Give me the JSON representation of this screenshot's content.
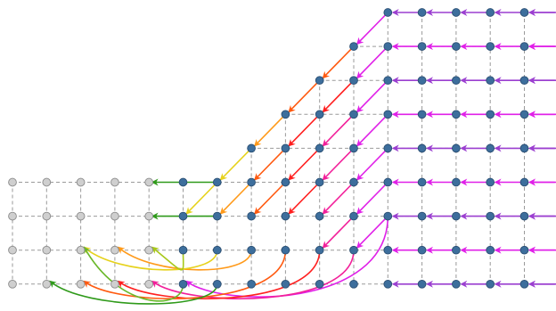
{
  "grid": {
    "columns": 17,
    "rows": 9,
    "grid_line_color": "#9a9a9a",
    "grey_node_color": "#cfcfcf",
    "blue_node_color": "#3d6e9c"
  },
  "grey_region": {
    "description_free": true,
    "cols_full_rows": [
      0,
      1,
      2,
      3,
      4
    ],
    "rows_filled": [
      5,
      6,
      7,
      8
    ]
  },
  "arrow_colors": {
    "purple": "#9b3fd0",
    "magenta": "#e020e8",
    "pink": "#f2209a",
    "red": "#ff2020",
    "orange_red": "#ff5a10",
    "orange": "#ff9a1a",
    "yellow": "#e6d21c",
    "yellow_green": "#a8c81a",
    "green_light": "#6ab82a",
    "green": "#2f9a1a"
  }
}
